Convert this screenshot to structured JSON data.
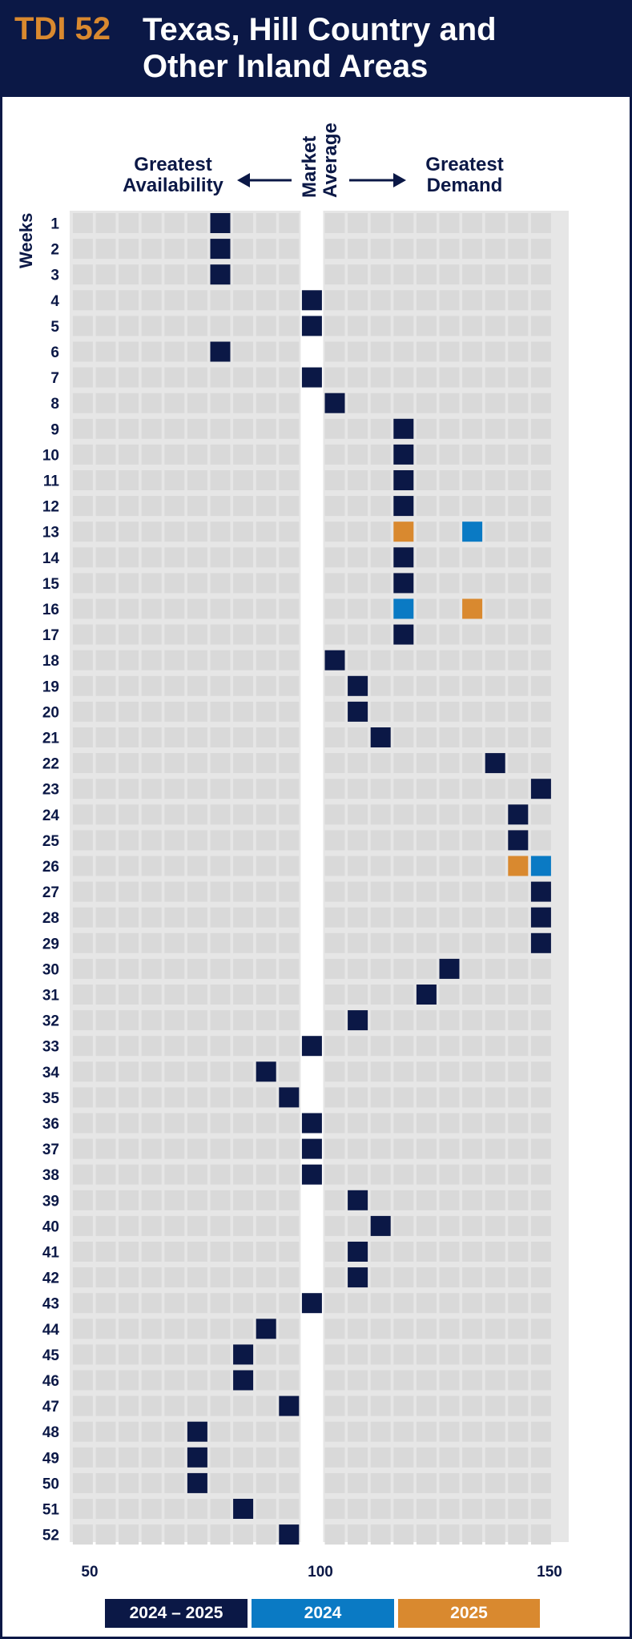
{
  "header": {
    "code": "TDI 52",
    "title_line1": "Texas, Hill Country and",
    "title_line2": "Other Inland Areas"
  },
  "labels": {
    "left_line1": "Greatest",
    "left_line2": "Availability",
    "center_line1": "Market",
    "center_line2": "Average",
    "right_line1": "Greatest",
    "right_line2": "Demand",
    "weeks": "Weeks"
  },
  "colors": {
    "navy": "#0b1846",
    "blue": "#0a7ac4",
    "orange": "#d9892f",
    "grid_cell": "#d9d9d9",
    "grid_bg": "#e6e6e6"
  },
  "chart_data": {
    "type": "heatmap",
    "x_ticks": [
      "50",
      "100",
      "150"
    ],
    "xlim": [
      50,
      150
    ],
    "x_step": 5,
    "weeks": [
      1,
      2,
      3,
      4,
      5,
      6,
      7,
      8,
      9,
      10,
      11,
      12,
      13,
      14,
      15,
      16,
      17,
      18,
      19,
      20,
      21,
      22,
      23,
      24,
      25,
      26,
      27,
      28,
      29,
      30,
      31,
      32,
      33,
      34,
      35,
      36,
      37,
      38,
      39,
      40,
      41,
      42,
      43,
      44,
      45,
      46,
      47,
      48,
      49,
      50,
      51,
      52
    ],
    "series": [
      {
        "name": "2024 – 2025",
        "color": "#0b1846",
        "values": [
          80,
          80,
          80,
          100,
          100,
          80,
          100,
          105,
          120,
          120,
          120,
          120,
          null,
          120,
          120,
          null,
          120,
          105,
          110,
          110,
          115,
          140,
          150,
          145,
          145,
          null,
          150,
          150,
          150,
          130,
          125,
          110,
          100,
          90,
          95,
          100,
          100,
          100,
          110,
          115,
          110,
          110,
          100,
          90,
          85,
          85,
          95,
          75,
          75,
          75,
          85,
          95
        ]
      },
      {
        "name": "2024",
        "color": "#0a7ac4",
        "points": [
          {
            "week": 13,
            "value": 135
          },
          {
            "week": 16,
            "value": 120
          },
          {
            "week": 26,
            "value": 150
          }
        ]
      },
      {
        "name": "2025",
        "color": "#d9892f",
        "points": [
          {
            "week": 13,
            "value": 120
          },
          {
            "week": 16,
            "value": 135
          },
          {
            "week": 26,
            "value": 145
          }
        ]
      }
    ]
  }
}
